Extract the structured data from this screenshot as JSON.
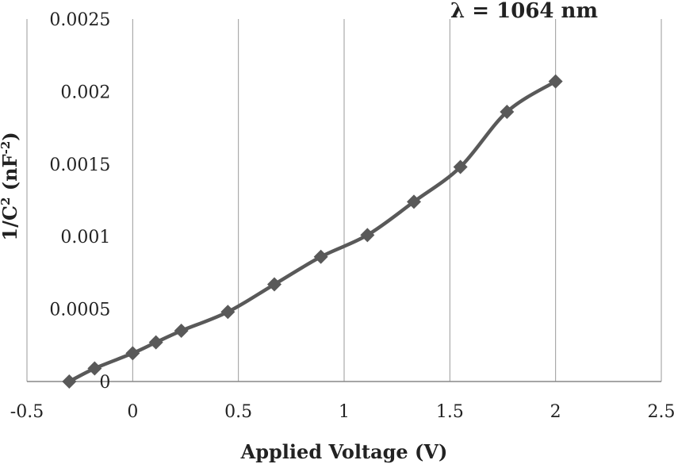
{
  "chart_data": {
    "type": "line",
    "title": "",
    "annotation": "λ = 1064 nm",
    "xlabel": "Applied Voltage (V)",
    "ylabel_main": "1/C",
    "ylabel_sup1": "2",
    "ylabel_mid": " (nF",
    "ylabel_sup2": "-2",
    "ylabel_end": ")",
    "xlim": [
      -0.5,
      2.5
    ],
    "ylim": [
      0,
      0.0025
    ],
    "xticks": [
      -0.5,
      0,
      0.5,
      1,
      1.5,
      2,
      2.5
    ],
    "xtick_labels": [
      "-0.5",
      "0",
      "0.5",
      "1",
      "1.5",
      "2",
      "2.5"
    ],
    "yticks": [
      0,
      0.0005,
      0.001,
      0.0015,
      0.002,
      0.0025
    ],
    "ytick_labels": [
      "0",
      "0.0005",
      "0.001",
      "0.0015",
      "0.002",
      "0.0025"
    ],
    "grid": "vertical",
    "legend": "none",
    "series": [
      {
        "name": "1/C^2",
        "marker": "diamond",
        "color": "#595959",
        "x": [
          -0.3,
          -0.18,
          0.0,
          0.11,
          0.23,
          0.45,
          0.67,
          0.89,
          1.11,
          1.33,
          1.55,
          1.77,
          2.0
        ],
        "y": [
          0.0,
          9e-05,
          0.000195,
          0.00027,
          0.00035,
          0.00048,
          0.00067,
          0.00086,
          0.00101,
          0.00124,
          0.00148,
          0.00186,
          0.00207
        ]
      }
    ]
  }
}
